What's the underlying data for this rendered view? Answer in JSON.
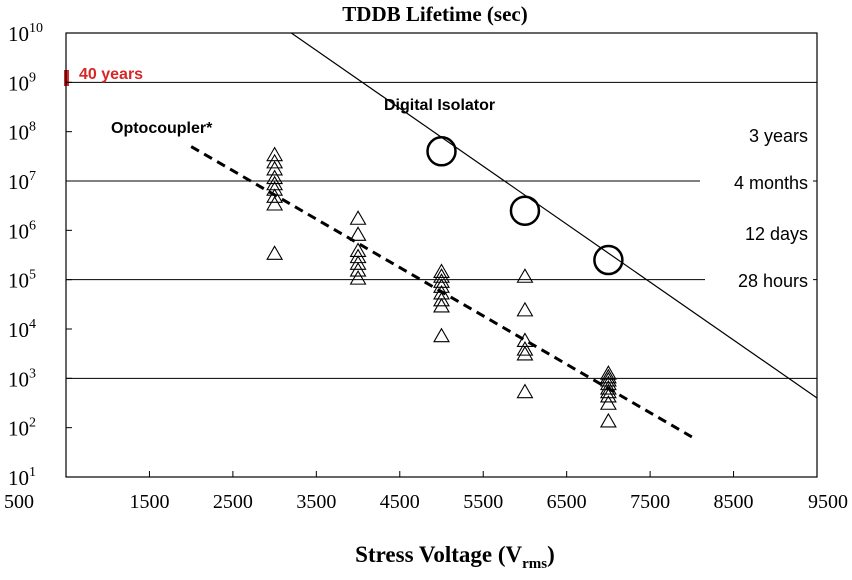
{
  "chart_data": {
    "type": "scatter",
    "title": "TDDB Lifetime (sec)",
    "xlabel": "Stress Voltage (V",
    "xlabel_sub": "rms",
    "xlabel_close": ")",
    "xlim": [
      500,
      9500
    ],
    "x_ticks": [
      500,
      1500,
      2500,
      3500,
      4500,
      5500,
      6500,
      7500,
      8500,
      9500
    ],
    "y_scale": "log",
    "ylim_exp": [
      1,
      10
    ],
    "y_tick_base": "10",
    "y_tick_exps": [
      "1",
      "2",
      "3",
      "4",
      "5",
      "6",
      "7",
      "8",
      "9",
      "10"
    ],
    "grid_lines_exp": [
      3,
      5,
      7,
      9
    ],
    "series": [
      {
        "name": "Digital Isolator",
        "marker": "circle",
        "line": "solid",
        "points": [
          [
            5000,
            40000000
          ],
          [
            6000,
            2500000
          ],
          [
            7000,
            250000
          ]
        ],
        "fit": [
          [
            3200,
            10000000000
          ],
          [
            9500,
            400
          ]
        ]
      },
      {
        "name": "Optocoupler*",
        "marker": "triangle",
        "line": "dashed",
        "points": [
          [
            3000,
            35000000
          ],
          [
            3000,
            25000000
          ],
          [
            3000,
            18000000
          ],
          [
            3000,
            12000000
          ],
          [
            3000,
            9000000
          ],
          [
            3000,
            7000000
          ],
          [
            3000,
            5000000
          ],
          [
            3000,
            3500000
          ],
          [
            3000,
            350000
          ],
          [
            4000,
            1800000
          ],
          [
            4000,
            850000
          ],
          [
            4000,
            400000
          ],
          [
            4000,
            300000
          ],
          [
            4000,
            220000
          ],
          [
            4000,
            160000
          ],
          [
            4000,
            110000
          ],
          [
            5000,
            150000
          ],
          [
            5000,
            120000
          ],
          [
            5000,
            95000
          ],
          [
            5000,
            75000
          ],
          [
            5000,
            55000
          ],
          [
            5000,
            40000
          ],
          [
            5000,
            30000
          ],
          [
            5000,
            7500
          ],
          [
            6000,
            120000
          ],
          [
            6000,
            25000
          ],
          [
            6000,
            6000
          ],
          [
            6000,
            4000
          ],
          [
            6000,
            3200
          ],
          [
            6000,
            550
          ],
          [
            7000,
            1300
          ],
          [
            7000,
            1100
          ],
          [
            7000,
            950
          ],
          [
            7000,
            800
          ],
          [
            7000,
            650
          ],
          [
            7000,
            550
          ],
          [
            7000,
            450
          ],
          [
            7000,
            320
          ],
          [
            7000,
            140
          ]
        ],
        "fit": [
          [
            2000,
            50000000
          ],
          [
            8000,
            65
          ]
        ]
      }
    ],
    "annotations": {
      "forty_years": "40 years",
      "digital_isolator": "Digital Isolator",
      "optocoupler": "Optocoupler*",
      "three_years": "3 years",
      "four_months": "4 months",
      "twelve_days": "12 days",
      "twenty_eight_hours": "28 hours"
    },
    "colors": {
      "axis": "#000000",
      "grid": "#000000",
      "forty_years": "#d62728"
    }
  }
}
